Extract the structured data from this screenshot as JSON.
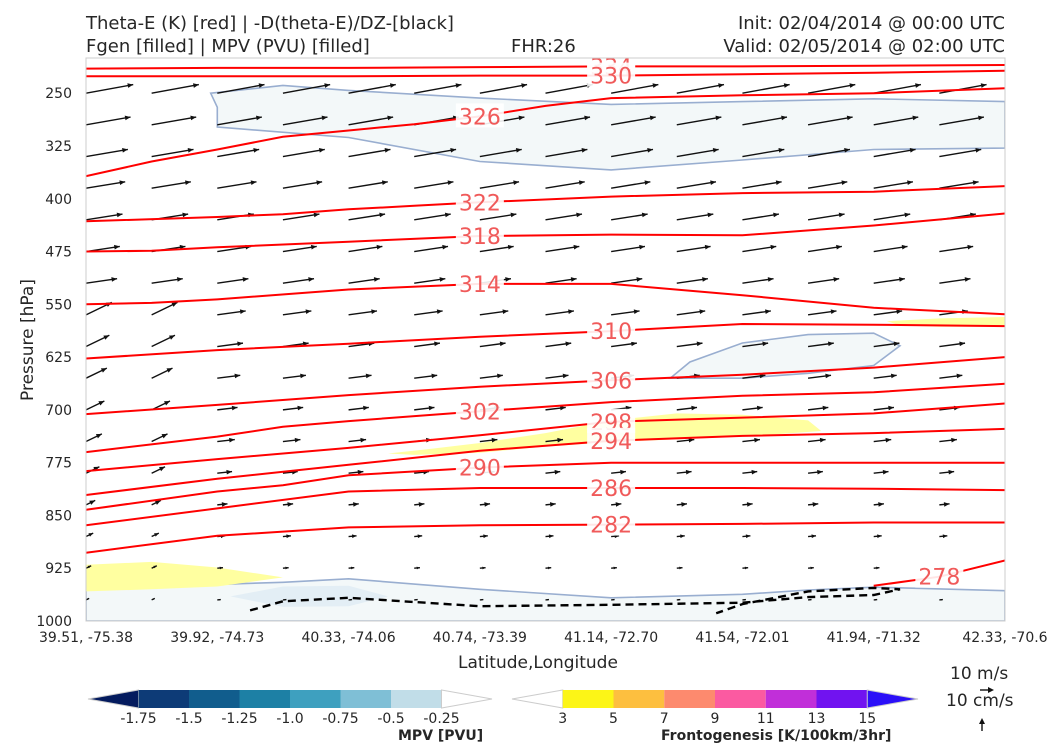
{
  "header": {
    "line1_left": "Theta-E (K) [red] | -D(theta-E)/DZ-[black]",
    "line2_left": "Fgen [filled] | MPV (PVU) [filled]",
    "fhr": "FHR:26",
    "init": "Init: 02/04/2014 @ 00:00 UTC",
    "valid": "Valid: 02/05/2014 @ 02:00 UTC"
  },
  "chart_data": {
    "type": "cross-section",
    "xlabel": "Latitude,Longitude",
    "ylabel": "Pressure [hPa]",
    "x_ticks": [
      "39.51, -75.38",
      "39.92, -74.73",
      "40.33, -74.06",
      "40.74, -73.39",
      "41.14, -72.70",
      "41.54, -72.01",
      "41.94, -71.32",
      "42.33, -70.6"
    ],
    "y_ticks": [
      250,
      325,
      400,
      475,
      550,
      625,
      700,
      775,
      850,
      925,
      1000
    ],
    "ylim": [
      1000,
      200
    ],
    "y_reversed": true,
    "theta_e_contours": {
      "color": "#ff0000",
      "lines": [
        {
          "label": "334",
          "points": [
            [
              0,
              215
            ],
            [
              1,
              214
            ],
            [
              2,
              214
            ],
            [
              3,
              213
            ],
            [
              4,
              212
            ],
            [
              5,
              212
            ],
            [
              6,
              211
            ],
            [
              7,
              210
            ]
          ]
        },
        {
          "label": "330",
          "points": [
            [
              0,
              226
            ],
            [
              1,
              226
            ],
            [
              2,
              226
            ],
            [
              3,
              225
            ],
            [
              4,
              225
            ],
            [
              5,
              223
            ],
            [
              6,
              221
            ],
            [
              7,
              218
            ]
          ]
        },
        {
          "label": "326",
          "points": [
            [
              0,
              368
            ],
            [
              0.5,
              347
            ],
            [
              1,
              330
            ],
            [
              1.5,
              312
            ],
            [
              2,
              303
            ],
            [
              2.5,
              294
            ],
            [
              3,
              283
            ],
            [
              3.5,
              268
            ],
            [
              4,
              257
            ],
            [
              5,
              253
            ],
            [
              6,
              250
            ],
            [
              7,
              243
            ]
          ]
        },
        {
          "label": "322",
          "points": [
            [
              0,
              432
            ],
            [
              1,
              426
            ],
            [
              1.5,
              422
            ],
            [
              2,
              415
            ],
            [
              2.5,
              410
            ],
            [
              3,
              405
            ],
            [
              4,
              397
            ],
            [
              5,
              392
            ],
            [
              6,
              390
            ],
            [
              7,
              382
            ]
          ]
        },
        {
          "label": "318",
          "points": [
            [
              0,
              475
            ],
            [
              0.5,
              474
            ],
            [
              1,
              469
            ],
            [
              2,
              461
            ],
            [
              3,
              453
            ],
            [
              4,
              451
            ],
            [
              5,
              452
            ],
            [
              6,
              438
            ],
            [
              7,
              421
            ]
          ]
        },
        {
          "label": "314",
          "points": [
            [
              0,
              550
            ],
            [
              0.5,
              548
            ],
            [
              1,
              543
            ],
            [
              2,
              529
            ],
            [
              3,
              521
            ],
            [
              4,
              521
            ],
            [
              5,
              537
            ],
            [
              6,
              555
            ],
            [
              7,
              564
            ]
          ]
        },
        {
          "label": "310",
          "points": [
            [
              0,
              627
            ],
            [
              1,
              615
            ],
            [
              2,
              606
            ],
            [
              3,
              596
            ],
            [
              4,
              588
            ],
            [
              5,
              578
            ],
            [
              6,
              579
            ],
            [
              7,
              581
            ]
          ]
        },
        {
          "label": "306",
          "points": [
            [
              0,
              706
            ],
            [
              1,
              693
            ],
            [
              2,
              679
            ],
            [
              3,
              667
            ],
            [
              4,
              658
            ],
            [
              5,
              650
            ],
            [
              6,
              640
            ],
            [
              7,
              625
            ]
          ]
        },
        {
          "label": "302",
          "points": [
            [
              0,
              760
            ],
            [
              1,
              738
            ],
            [
              1.5,
              724
            ],
            [
              2,
              716
            ],
            [
              3,
              702
            ],
            [
              4,
              689
            ],
            [
              5,
              680
            ],
            [
              6,
              675
            ],
            [
              7,
              663
            ]
          ]
        },
        {
          "label": "298",
          "points": [
            [
              0,
              787
            ],
            [
              1,
              770
            ],
            [
              2,
              754
            ],
            [
              3,
              736
            ],
            [
              4,
              717
            ],
            [
              5,
              711
            ],
            [
              6,
              705
            ],
            [
              7,
              691
            ]
          ]
        },
        {
          "label": "294",
          "points": [
            [
              0,
              821
            ],
            [
              1,
              798
            ],
            [
              2,
              778
            ],
            [
              3,
              758
            ],
            [
              4,
              744
            ],
            [
              5,
              737
            ],
            [
              6,
              733
            ],
            [
              7,
              727
            ]
          ]
        },
        {
          "label": "290",
          "points": [
            [
              0,
              842
            ],
            [
              1,
              816
            ],
            [
              1.5,
              807
            ],
            [
              2,
              793
            ],
            [
              3,
              782
            ],
            [
              4,
              775
            ],
            [
              5,
              775
            ],
            [
              6,
              775
            ],
            [
              7,
              775
            ]
          ]
        },
        {
          "label": "286",
          "points": [
            [
              0,
              864
            ],
            [
              1,
              840
            ],
            [
              2,
              816
            ],
            [
              3,
              811
            ],
            [
              4,
              811
            ],
            [
              5,
              811
            ],
            [
              6,
              812
            ],
            [
              7,
              814
            ]
          ]
        },
        {
          "label": "282",
          "points": [
            [
              0,
              903
            ],
            [
              1,
              879
            ],
            [
              2,
              867
            ],
            [
              3,
              864
            ],
            [
              4,
              863
            ],
            [
              5,
              862
            ],
            [
              6,
              860
            ],
            [
              7,
              860
            ]
          ]
        },
        {
          "label": "278",
          "points": [
            [
              6,
              950
            ],
            [
              6.5,
              937
            ],
            [
              7,
              914
            ]
          ]
        }
      ]
    },
    "dtheta_dz_contour": {
      "color": "#000000",
      "style": "dashed",
      "points": [
        [
          1.25,
          985
        ],
        [
          1.5,
          972
        ],
        [
          2,
          967
        ],
        [
          3,
          979
        ],
        [
          4,
          977
        ],
        [
          5,
          974
        ],
        [
          5.5,
          966
        ],
        [
          6,
          963
        ],
        [
          6.2,
          955
        ],
        [
          6,
          953
        ],
        [
          5.5,
          958
        ],
        [
          5,
          976
        ],
        [
          4.8,
          989
        ]
      ]
    },
    "mpv_regions": [
      {
        "fill": "#f3f8f9",
        "edge": "#99aed0",
        "points": [
          [
            0.95,
            250
          ],
          [
            1.5,
            239
          ],
          [
            2,
            246
          ],
          [
            3,
            257
          ],
          [
            4,
            266
          ],
          [
            5,
            262
          ],
          [
            6,
            258
          ],
          [
            7,
            262
          ],
          [
            7,
            328
          ],
          [
            6,
            330
          ],
          [
            5,
            345
          ],
          [
            4,
            359
          ],
          [
            3,
            347
          ],
          [
            2,
            313
          ],
          [
            1,
            298
          ],
          [
            1.0,
            270
          ]
        ]
      },
      {
        "fill": "#f3f8f9",
        "edge": "#99aed0",
        "points": [
          [
            4.45,
            655
          ],
          [
            4.6,
            632
          ],
          [
            5,
            605
          ],
          [
            5.5,
            593
          ],
          [
            6.0,
            591
          ],
          [
            6.2,
            609
          ],
          [
            6.0,
            637
          ],
          [
            5.5,
            648
          ],
          [
            5,
            655
          ]
        ]
      },
      {
        "fill": "#f3f8f9",
        "edge": "#99aed0",
        "points": [
          [
            0,
            943
          ],
          [
            0.5,
            945
          ],
          [
            1,
            948
          ],
          [
            1.5,
            945
          ],
          [
            2,
            940
          ],
          [
            3,
            955
          ],
          [
            4,
            967
          ],
          [
            5,
            962
          ],
          [
            5.5,
            956
          ],
          [
            6,
            952
          ],
          [
            7,
            957
          ],
          [
            7,
            1000
          ],
          [
            0,
            1000
          ]
        ]
      },
      {
        "fill": "#e3eef5",
        "edge": "none",
        "points": [
          [
            1.1,
            965
          ],
          [
            1.5,
            951
          ],
          [
            2,
            950
          ],
          [
            2.3,
            965
          ],
          [
            2,
            979
          ],
          [
            1.5,
            980
          ]
        ]
      }
    ],
    "fgen_regions": [
      {
        "fill": "#ffffa0",
        "points": [
          [
            0,
            920
          ],
          [
            0.5,
            916
          ],
          [
            1,
            924
          ],
          [
            1.5,
            938
          ],
          [
            1,
            951
          ],
          [
            0.5,
            955
          ],
          [
            0,
            958
          ]
        ]
      },
      {
        "fill": "#ffffa0",
        "points": [
          [
            2.3,
            762
          ],
          [
            2.6,
            756
          ],
          [
            3.0,
            747
          ],
          [
            3.5,
            733
          ],
          [
            4,
            715
          ],
          [
            4.5,
            705
          ],
          [
            5,
            707
          ],
          [
            5.5,
            715
          ],
          [
            5.6,
            730
          ],
          [
            5,
            738
          ],
          [
            4.5,
            742
          ],
          [
            4,
            746
          ],
          [
            3.5,
            752
          ],
          [
            3,
            761
          ],
          [
            2.5,
            764
          ]
        ]
      },
      {
        "fill": "#ffffa0",
        "points": [
          [
            6.1,
            574
          ],
          [
            6.5,
            570
          ],
          [
            7,
            568
          ],
          [
            7,
            582
          ],
          [
            6.5,
            582
          ],
          [
            6.2,
            580
          ]
        ]
      }
    ],
    "wind_vectors_note": "black arrows; u in m/s, omega in cm/s",
    "vector_key": {
      "u_label": "10 m/s",
      "w_label": "10 cm/s"
    },
    "colorbars": [
      {
        "label": "MPV [PVU]",
        "ticks": [
          "-1.75",
          "-1.5",
          "-1.25",
          "-1.0",
          "-0.75",
          "-0.5",
          "-0.25"
        ],
        "colors": [
          "#041b5e",
          "#0d3b77",
          "#115d8d",
          "#1d80a5",
          "#3ea0bf",
          "#7fbfd6",
          "#c1dde8",
          "#ffffff"
        ],
        "extend": "both"
      },
      {
        "label": "Frontogenesis [K/100km/3hr]",
        "ticks": [
          "3",
          "5",
          "7",
          "9",
          "11",
          "13",
          "15"
        ],
        "colors": [
          "#ffffff",
          "#fcf517",
          "#fdbf3f",
          "#fd8a6e",
          "#fb5aa1",
          "#c12fd9",
          "#7113f0",
          "#2b10f8"
        ],
        "extend": "both"
      }
    ]
  }
}
